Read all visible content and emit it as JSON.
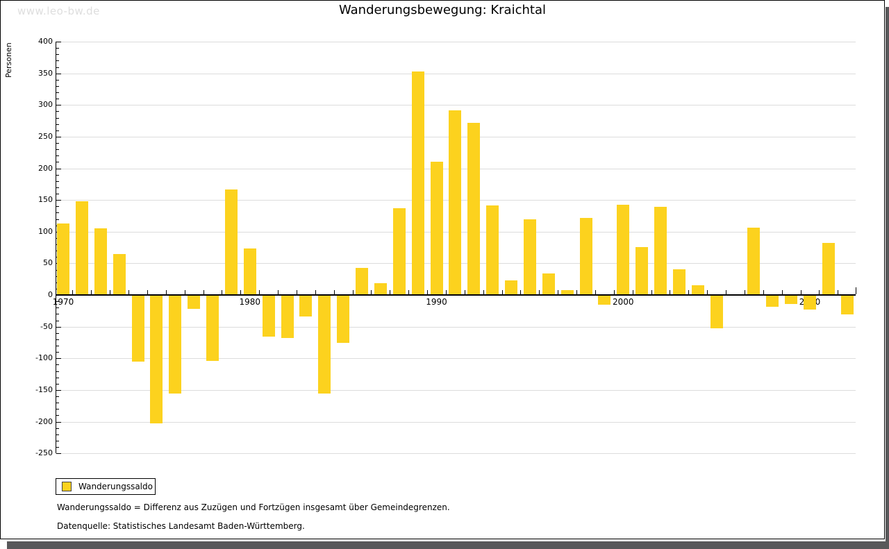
{
  "watermark": "www.leo-bw.de",
  "title": "Wanderungsbewegung: Kraichtal",
  "legend": {
    "label": "Wanderungssaldo"
  },
  "footnotes": [
    "Wanderungssaldo = Differenz aus Zuzügen und Fortzügen insgesamt über Gemeindegrenzen.",
    "Datenquelle: Statistisches Landesamt Baden-Württemberg."
  ],
  "colors": {
    "bar": "#fcd21e",
    "grid": "#dcdcdc",
    "axis": "#000000",
    "shadow": "#58585a",
    "watermark": "#dedede"
  },
  "chart_data": {
    "type": "bar",
    "title": "Wanderungsbewegung: Kraichtal",
    "xlabel": "",
    "ylabel": "Personen",
    "ylim": [
      -250,
      400
    ],
    "y_tick_step": 50,
    "y_minor_step": 10,
    "grid": "horizontal-only",
    "legend_position": "bottom-left",
    "series_name": "Wanderungssaldo",
    "x_decade_labels": [
      "1970",
      "1980",
      "1990",
      "2000",
      "2010"
    ],
    "years": [
      1970,
      1971,
      1972,
      1973,
      1974,
      1975,
      1976,
      1977,
      1978,
      1979,
      1980,
      1981,
      1982,
      1983,
      1984,
      1985,
      1986,
      1987,
      1988,
      1989,
      1990,
      1991,
      1992,
      1993,
      1994,
      1995,
      1996,
      1997,
      1998,
      1999,
      2000,
      2001,
      2002,
      2003,
      2004,
      2005,
      2006,
      2007,
      2008,
      2009,
      2010,
      2011,
      2012
    ],
    "values": [
      112,
      147,
      104,
      64,
      -104,
      -202,
      -155,
      -21,
      -103,
      165,
      72,
      -65,
      -67,
      -33,
      -155,
      -74,
      42,
      17,
      136,
      352,
      209,
      290,
      271,
      140,
      22,
      118,
      33,
      7,
      121,
      -14,
      141,
      74,
      138,
      40,
      14,
      -52,
      0,
      105,
      -18,
      -13,
      -22,
      81,
      -30
    ]
  }
}
